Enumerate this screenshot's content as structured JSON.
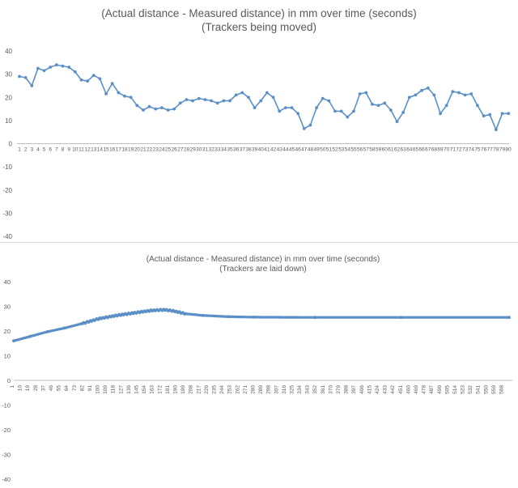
{
  "chart_data": [
    {
      "type": "line",
      "title": "(Actual distance - Measured distance) in mm over time (seconds)",
      "subtitle": "(Trackers being moved)",
      "xlabel": "",
      "ylabel": "",
      "ylim": [
        -40,
        40
      ],
      "ytick_step": 10,
      "grid": false,
      "legend": "none",
      "color": "#5b8fc7",
      "x": [
        1,
        2,
        3,
        4,
        5,
        6,
        7,
        8,
        9,
        10,
        11,
        12,
        13,
        14,
        15,
        16,
        17,
        18,
        19,
        20,
        21,
        22,
        23,
        24,
        25,
        26,
        27,
        28,
        29,
        30,
        31,
        32,
        33,
        34,
        35,
        36,
        37,
        38,
        39,
        40,
        41,
        42,
        43,
        44,
        45,
        46,
        47,
        48,
        49,
        50,
        51,
        52,
        53,
        54,
        55,
        56,
        57,
        58,
        59,
        60,
        61,
        62,
        63,
        64,
        65,
        66,
        67,
        68,
        69,
        70,
        71,
        72,
        73,
        74,
        75,
        76,
        77,
        78,
        79,
        80
      ],
      "series": [
        {
          "values": [
            29,
            28.5,
            25,
            32.5,
            31.5,
            33,
            34,
            33.5,
            33,
            31,
            27.5,
            27,
            29.5,
            28,
            21.5,
            26,
            22,
            20.5,
            20,
            16.5,
            14.5,
            16,
            15,
            15.5,
            14.5,
            15,
            17.5,
            19,
            18.5,
            19.5,
            19,
            18.5,
            17.5,
            18.5,
            18.5,
            21,
            22,
            20,
            15.5,
            18.5,
            22,
            20,
            14,
            15.5,
            15.5,
            13,
            6.5,
            8,
            15.5,
            19.5,
            18.5,
            14,
            14,
            11.5,
            14,
            21.5,
            22,
            17,
            16.5,
            17.5,
            14.5,
            9.5,
            13.5,
            20,
            21,
            23,
            24,
            21,
            13,
            16.5,
            22.5,
            22,
            21,
            21.5,
            16.5,
            12,
            12.5,
            6,
            13,
            13
          ]
        }
      ]
    },
    {
      "type": "line",
      "title": "(Actual distance - Measured distance) in mm over time (seconds)",
      "subtitle": "(Trackers are laid down)",
      "xlabel": "",
      "ylabel": "",
      "ylim": [
        -40,
        40
      ],
      "ytick_step": 10,
      "grid": false,
      "legend": "none",
      "color": "#5b8fc7",
      "x_max": 575,
      "x_tick_labels": [
        1,
        10,
        19,
        28,
        37,
        46,
        55,
        64,
        73,
        82,
        91,
        100,
        109,
        118,
        127,
        136,
        145,
        154,
        163,
        172,
        181,
        190,
        199,
        208,
        217,
        226,
        235,
        244,
        253,
        262,
        271,
        280,
        289,
        298,
        307,
        316,
        325,
        334,
        343,
        352,
        361,
        370,
        379,
        388,
        397,
        406,
        415,
        424,
        433,
        442,
        451,
        460,
        469,
        478,
        487,
        496,
        505,
        514,
        523,
        532,
        541,
        550,
        559,
        568
      ],
      "series": [
        {
          "points": [
            [
              1,
              16
            ],
            [
              20,
              17.8
            ],
            [
              40,
              19.7
            ],
            [
              60,
              21.2
            ],
            [
              80,
              23
            ],
            [
              100,
              25
            ],
            [
              120,
              26.3
            ],
            [
              140,
              27.3
            ],
            [
              160,
              28.3
            ],
            [
              175,
              28.6
            ],
            [
              185,
              28.2
            ],
            [
              200,
              27
            ],
            [
              220,
              26.3
            ],
            [
              250,
              25.8
            ],
            [
              280,
              25.6
            ],
            [
              350,
              25.5
            ],
            [
              450,
              25.5
            ],
            [
              575,
              25.5
            ]
          ]
        }
      ]
    }
  ]
}
